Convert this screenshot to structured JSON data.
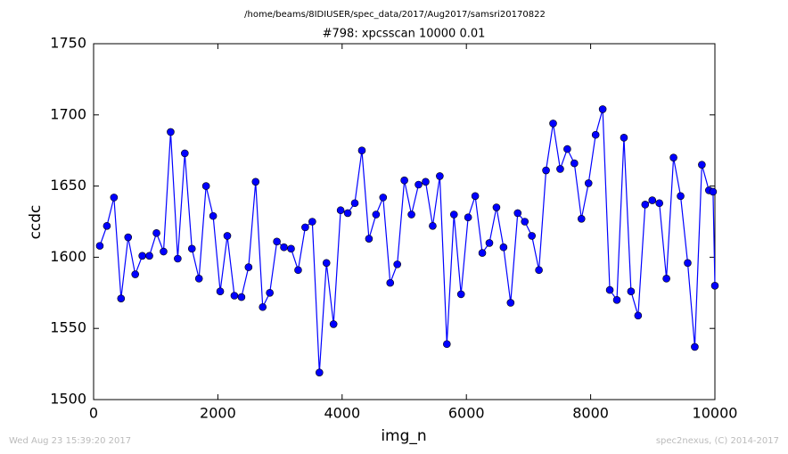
{
  "chart_data": {
    "type": "line",
    "suptitle": "/home/beams/8IDIUSER/spec_data/2017/Aug2017/samsri20170822",
    "title": "#798: xpcsscan 10000 0.01",
    "x_label": "img_n",
    "y_label": "ccdc",
    "footer_left": "Wed Aug 23 15:39:20 2017",
    "footer_right": "spec2nexus, (C) 2014-2017",
    "x": [
      100,
      214,
      328,
      442,
      556,
      670,
      784,
      898,
      1012,
      1126,
      1240,
      1354,
      1468,
      1582,
      1696,
      1810,
      1924,
      2038,
      2152,
      2266,
      2380,
      2494,
      2608,
      2722,
      2836,
      2950,
      3064,
      3178,
      3292,
      3406,
      3520,
      3634,
      3748,
      3862,
      3976,
      4090,
      4204,
      4318,
      4432,
      4546,
      4660,
      4774,
      4888,
      5002,
      5116,
      5230,
      5344,
      5458,
      5572,
      5686,
      5800,
      5914,
      6028,
      6142,
      6256,
      6370,
      6484,
      6598,
      6712,
      6826,
      6940,
      7054,
      7168,
      7282,
      7396,
      7510,
      7624,
      7738,
      7852,
      7966,
      8080,
      8194,
      8308,
      8422,
      8536,
      8650,
      8764,
      8878,
      8992,
      9106,
      9220,
      9334,
      9448,
      9562,
      9676,
      9790,
      9904,
      9970,
      10000
    ],
    "series": [
      {
        "name": "ccdc",
        "color": "#0000ff",
        "values": [
          1608,
          1622,
          1642,
          1571,
          1614,
          1588,
          1601,
          1601,
          1617,
          1604,
          1688,
          1599,
          1673,
          1606,
          1585,
          1650,
          1629,
          1576,
          1615,
          1573,
          1572,
          1593,
          1653,
          1565,
          1575,
          1611,
          1607,
          1606,
          1591,
          1621,
          1625,
          1519,
          1596,
          1553,
          1633,
          1631,
          1638,
          1675,
          1613,
          1630,
          1642,
          1582,
          1595,
          1654,
          1630,
          1651,
          1653,
          1622,
          1657,
          1539,
          1630,
          1574,
          1628,
          1643,
          1603,
          1610,
          1635,
          1607,
          1568,
          1631,
          1625,
          1615,
          1591,
          1661,
          1694,
          1662,
          1676,
          1666,
          1627,
          1652,
          1686,
          1704,
          1577,
          1570,
          1684,
          1576,
          1559,
          1637,
          1640,
          1638,
          1585,
          1670,
          1643,
          1596,
          1537,
          1665,
          1647,
          1646,
          1580
        ]
      }
    ],
    "xlim": [
      0,
      10000
    ],
    "xticks": [
      0,
      2000,
      4000,
      6000,
      8000,
      10000
    ],
    "ylim": [
      1500,
      1750
    ],
    "yticks": [
      1500,
      1550,
      1600,
      1650,
      1700,
      1750
    ]
  }
}
